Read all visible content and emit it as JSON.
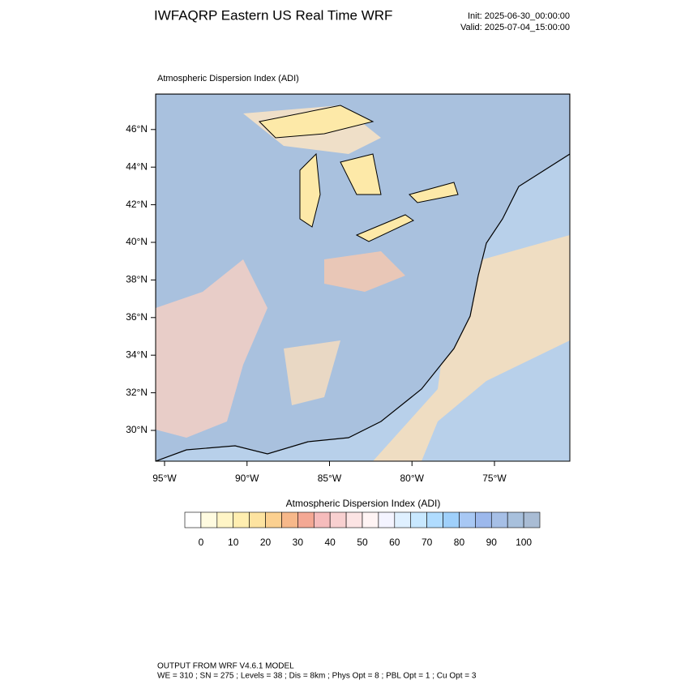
{
  "header": {
    "title": "IWFAQRP Eastern US Real Time WRF",
    "init": "Init: 2025-06-30_00:00:00",
    "valid": "Valid: 2025-07-04_15:00:00"
  },
  "map": {
    "title": "Atmospheric Dispersion Index   (ADI)",
    "lat_ticks": [
      {
        "value": 30,
        "label": "30°N"
      },
      {
        "value": 32,
        "label": "32°N"
      },
      {
        "value": 34,
        "label": "34°N"
      },
      {
        "value": 36,
        "label": "36°N"
      },
      {
        "value": 38,
        "label": "38°N"
      },
      {
        "value": 40,
        "label": "40°N"
      },
      {
        "value": 42,
        "label": "42°N"
      },
      {
        "value": 44,
        "label": "44°N"
      },
      {
        "value": 46,
        "label": "46°N"
      }
    ],
    "lon_ticks": [
      {
        "value": -95,
        "label": "95°W"
      },
      {
        "value": -90,
        "label": "90°W"
      },
      {
        "value": -85,
        "label": "85°W"
      },
      {
        "value": -80,
        "label": "80°W"
      },
      {
        "value": -75,
        "label": "75°W"
      }
    ]
  },
  "colorbar": {
    "title": "Atmospheric Dispersion Index  (ADI)",
    "ticks": [
      0,
      10,
      20,
      30,
      40,
      50,
      60,
      70,
      80,
      90,
      100
    ],
    "colors": [
      "#ffffff",
      "#fffbe0",
      "#fff5c6",
      "#ffeeb0",
      "#fde3a0",
      "#fbd090",
      "#f7b88a",
      "#f4a894",
      "#f6bcbc",
      "#f8d0d0",
      "#fce4e4",
      "#fff4f4",
      "#f4f4ff",
      "#dff0ff",
      "#c8e8ff",
      "#b0dcff",
      "#9fd0fb",
      "#a8c8f4",
      "#9cb8ec",
      "#a6bfe6",
      "#a8c0dc",
      "#a9bcd4"
    ]
  },
  "footer": {
    "line1": "OUTPUT FROM WRF V4.6.1 MODEL",
    "line2": "WE = 310 ; SN = 275 ; Levels = 38 ; Dis = 8km ; Phys Opt = 8 ; PBL Opt = 1 ; Cu Opt = 3"
  }
}
